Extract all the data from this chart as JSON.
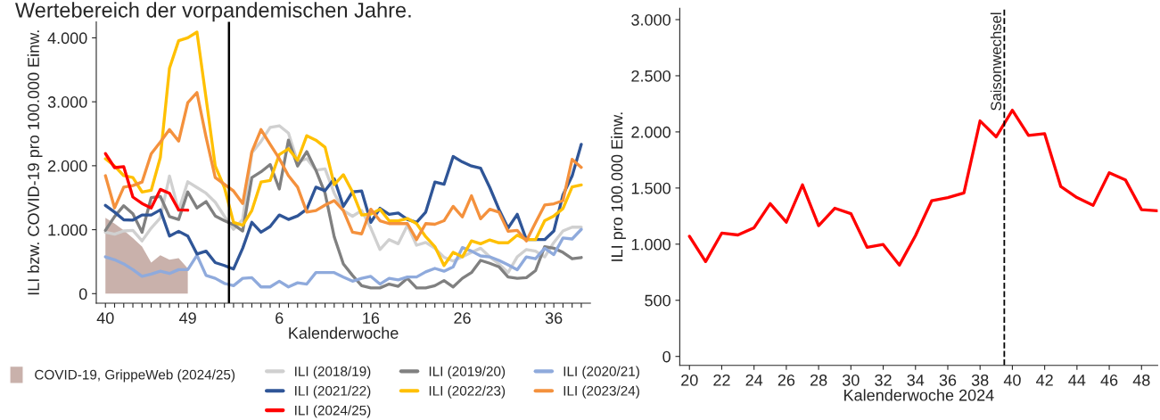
{
  "chart_data": [
    {
      "type": "line",
      "title": "Wertebereich der vorpandemischen Jahre.",
      "xlabel": "Kalenderwoche",
      "ylabel": "ILI bzw. COVID-19 pro 100.000 Einw.",
      "categories": [
        "40",
        null,
        null,
        null,
        null,
        null,
        null,
        null,
        null,
        "49",
        null,
        null,
        null,
        null,
        null,
        null,
        null,
        null,
        null,
        "6",
        null,
        null,
        null,
        null,
        null,
        null,
        null,
        null,
        null,
        "16",
        null,
        null,
        null,
        null,
        null,
        null,
        null,
        null,
        null,
        "26",
        null,
        null,
        null,
        null,
        null,
        null,
        null,
        null,
        null,
        "36",
        null,
        null,
        null
      ],
      "ylim": [
        -150,
        4250
      ],
      "yticks": [
        0,
        {
          "value": 1000,
          "label": "1.000"
        },
        {
          "value": 2000,
          "label": "2.000"
        },
        {
          "value": 3000,
          "label": "3.000"
        },
        {
          "value": 4000,
          "label": "4.000"
        }
      ],
      "legend": "bottom",
      "grid": false,
      "line_style": "solid",
      "series": [
        {
          "name": "COVID-19, GrippeWeb (2024/25)",
          "type": "area",
          "color": "#c9b1ab",
          "values": [
            1185,
            1095,
            990,
            870,
            735,
            485,
            600,
            530,
            555,
            395,
            null,
            null,
            null,
            null,
            null,
            null,
            null,
            null,
            null,
            null,
            null,
            null,
            null,
            null,
            null,
            null,
            null,
            null,
            null,
            null,
            null,
            null,
            null,
            null,
            null,
            null,
            null,
            null,
            null,
            null,
            null,
            null,
            null,
            null,
            null,
            null,
            null,
            null,
            null,
            null,
            null,
            null,
            null
          ]
        },
        {
          "name": "ILI (2018/19)",
          "color": "#d0d0d0",
          "values": [
            960,
            930,
            980,
            990,
            825,
            1025,
            1185,
            1840,
            1300,
            1750,
            1660,
            1570,
            1430,
            1210,
            1005,
            1160,
            2200,
            2380,
            2600,
            2625,
            2510,
            2060,
            2110,
            1930,
            1950,
            1570,
            1300,
            1210,
            1300,
            1025,
            690,
            845,
            780,
            1070,
            757,
            800,
            710,
            570,
            510,
            575,
            645,
            710,
            575,
            465,
            330,
            575,
            690,
            665,
            575,
            800,
            980,
            1040,
            1040
          ]
        },
        {
          "name": "ILI (2019/20)",
          "color": "#808080",
          "values": [
            990,
            1205,
            1375,
            1250,
            960,
            1500,
            1520,
            1205,
            1160,
            1590,
            1340,
            1440,
            1215,
            1140,
            1080,
            980,
            1815,
            1905,
            2020,
            1635,
            2400,
            1995,
            2220,
            1930,
            1570,
            890,
            465,
            285,
            125,
            90,
            90,
            150,
            115,
            240,
            90,
            90,
            125,
            205,
            105,
            240,
            330,
            520,
            475,
            420,
            260,
            240,
            250,
            360,
            735,
            710,
            645,
            545,
            565
          ]
        },
        {
          "name": "ILI (2020/21)",
          "color": "#8faadc",
          "values": [
            575,
            530,
            465,
            375,
            270,
            305,
            350,
            315,
            375,
            375,
            600,
            285,
            240,
            160,
            125,
            240,
            250,
            105,
            105,
            195,
            105,
            170,
            150,
            330,
            330,
            330,
            260,
            195,
            240,
            270,
            150,
            240,
            215,
            260,
            260,
            340,
            395,
            350,
            420,
            720,
            665,
            590,
            575,
            520,
            450,
            375,
            575,
            545,
            710,
            610,
            870,
            855,
            1005
          ]
        },
        {
          "name": "ILI (2021/22)",
          "color": "#2f5597",
          "values": [
            1380,
            1275,
            1155,
            1150,
            1230,
            1230,
            1310,
            900,
            975,
            900,
            620,
            665,
            485,
            440,
            385,
            710,
            1115,
            960,
            1050,
            1230,
            1160,
            1215,
            1320,
            1665,
            1610,
            1795,
            1365,
            1590,
            1605,
            1115,
            1335,
            1240,
            1260,
            1160,
            1115,
            1275,
            1745,
            1710,
            2145,
            2060,
            1995,
            1960,
            1660,
            1320,
            1025,
            1240,
            845,
            845,
            845,
            980,
            1545,
            1840,
            2335
          ]
        },
        {
          "name": "ILI (2022/23)",
          "color": "#ffc000",
          "values": [
            2110,
            1995,
            1845,
            1815,
            1590,
            1615,
            2130,
            3525,
            3955,
            4000,
            4090,
            3055,
            1995,
            1660,
            1115,
            1070,
            1300,
            1745,
            1770,
            2175,
            2265,
            2085,
            2470,
            2400,
            2290,
            1705,
            1860,
            1590,
            1230,
            1245,
            1320,
            1140,
            1140,
            1175,
            1095,
            890,
            735,
            440,
            645,
            575,
            825,
            780,
            840,
            795,
            795,
            915,
            845,
            845,
            1140,
            1215,
            1330,
            1670,
            1700
          ]
        },
        {
          "name": "ILI (2023/24)",
          "color": "#f4913d",
          "values": [
            1845,
            1340,
            1665,
            1690,
            1745,
            2185,
            2370,
            2565,
            2385,
            2985,
            3145,
            2445,
            1815,
            1710,
            1605,
            1410,
            2220,
            2565,
            2335,
            2110,
            1845,
            1665,
            1275,
            1300,
            1385,
            1455,
            1300,
            960,
            935,
            1320,
            1140,
            1095,
            1095,
            1095,
            845,
            1095,
            1085,
            1140,
            1365,
            1200,
            1530,
            1170,
            1320,
            1275,
            975,
            990,
            825,
            1110,
            1385,
            1405,
            1455,
            2100,
            1975
          ]
        },
        {
          "name": "ILI (2024/25)",
          "color": "#ff0000",
          "values": [
            2190,
            1970,
            1985,
            1510,
            1410,
            1340,
            1630,
            1570,
            1310,
            1305,
            null,
            null,
            null,
            null,
            null,
            null,
            null,
            null,
            null,
            null,
            null,
            null,
            null,
            null,
            null,
            null,
            null,
            null,
            null,
            null,
            null,
            null,
            null,
            null,
            null,
            null,
            null,
            null,
            null,
            null,
            null,
            null,
            null,
            null,
            null,
            null,
            null,
            null,
            null,
            null,
            null,
            null,
            null
          ]
        }
      ]
    },
    {
      "type": "line",
      "xlabel": "Kalenderwoche 2024",
      "ylabel": "ILI pro 100.000 Einw.",
      "x": [
        20,
        21,
        22,
        23,
        24,
        25,
        26,
        27,
        28,
        29,
        30,
        31,
        32,
        33,
        34,
        35,
        36,
        37,
        38,
        39,
        40,
        41,
        42,
        43,
        44,
        45,
        46,
        47,
        48,
        49
      ],
      "xlim": [
        19.4,
        49
      ],
      "ylim": [
        -80,
        3100
      ],
      "xticks": [
        20,
        22,
        24,
        26,
        28,
        30,
        32,
        34,
        36,
        38,
        40,
        42,
        44,
        46,
        48
      ],
      "yticks": [
        0,
        500,
        {
          "value": 1000,
          "label": "1.000"
        },
        {
          "value": 1500,
          "label": "1.500"
        },
        {
          "value": 2000,
          "label": "2.000"
        },
        {
          "value": 2500,
          "label": "2.500"
        },
        {
          "value": 3000,
          "label": "3.000"
        }
      ],
      "ref_lines": [
        {
          "axis": "x",
          "value": 39.5,
          "label": "Saisonwechsel",
          "color": "#000000",
          "line_style": "dashed"
        }
      ],
      "grid": false,
      "line_style": "solid",
      "series": [
        {
          "color": "#ff0000",
          "values": [
            1070,
            845,
            1098,
            1082,
            1146,
            1361,
            1196,
            1528,
            1165,
            1320,
            1272,
            972,
            997,
            813,
            1076,
            1386,
            1415,
            1456,
            2098,
            1956,
            2193,
            1968,
            1984,
            1513,
            1415,
            1345,
            1636,
            1573,
            1307,
            1297
          ]
        }
      ]
    }
  ]
}
